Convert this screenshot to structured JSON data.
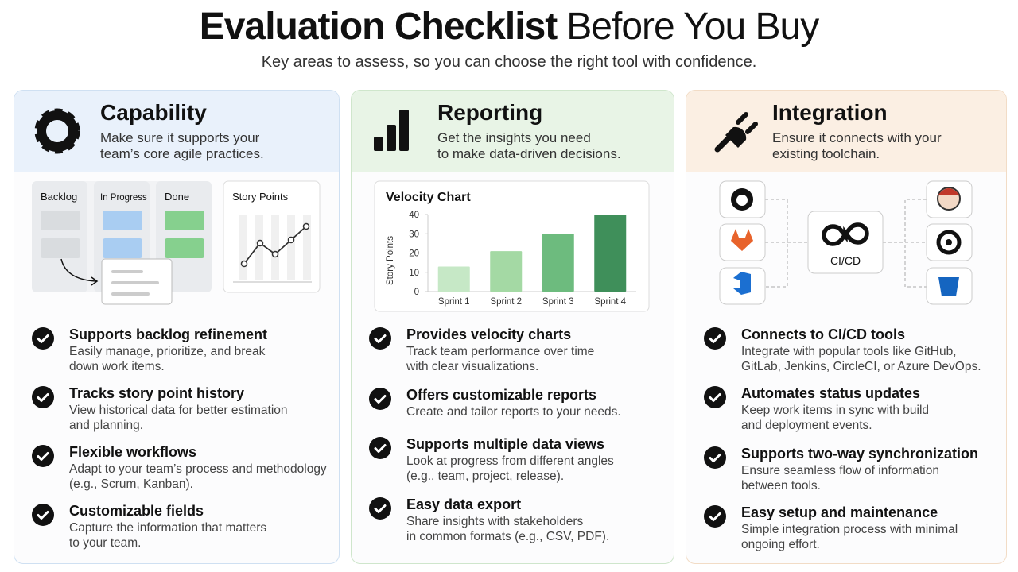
{
  "header": {
    "title_bold": "Evaluation Checklist",
    "title_regular": "Before You Buy",
    "subtitle": "Key areas to assess, so you can choose the right tool with confidence."
  },
  "columns": [
    {
      "heading": "Capability",
      "description": [
        "Make sure it supports your",
        "team’s core agile practices."
      ],
      "illustration": {
        "columns": [
          "Backlog",
          "In Progress",
          "Done"
        ],
        "chart_label": "Story Points"
      },
      "items": [
        {
          "title": "Supports backlog refinement",
          "text": [
            "Easily manage, prioritize, and break",
            "down work items."
          ]
        },
        {
          "title": "Tracks story point history",
          "text": [
            "View historical data for better estimation",
            "and planning."
          ]
        },
        {
          "title": "Flexible workflows",
          "text": [
            "Adapt to your team’s process and methodology",
            "(e.g., Scrum, Kanban)."
          ]
        },
        {
          "title": "Customizable fields",
          "text": [
            "Capture the information that matters",
            "to your team."
          ]
        }
      ]
    },
    {
      "heading": "Reporting",
      "description": [
        "Get the insights you need",
        "to make data-driven decisions."
      ],
      "chart": {
        "type": "bar",
        "title": "Velocity Chart",
        "y_label": "Story Points",
        "categories": [
          "Sprint 1",
          "Sprint 2",
          "Sprint 3",
          "Sprint 4"
        ],
        "values": [
          13,
          21,
          30,
          40
        ],
        "colors": [
          "#c6e8c6",
          "#a4d9a4",
          "#6dbb7e",
          "#3f8f5a"
        ],
        "ylim": [
          0,
          40
        ],
        "yticks": [
          0,
          10,
          20,
          30,
          40
        ]
      },
      "items": [
        {
          "title": "Provides velocity charts",
          "text": [
            "Track team performance over time",
            "with clear visualizations."
          ]
        },
        {
          "title": "Offers customizable reports",
          "text": [
            "Create and tailor reports to your needs."
          ]
        },
        {
          "title": "Supports multiple data views",
          "text": [
            "Look at progress from different angles",
            "(e.g., team, project, release)."
          ]
        },
        {
          "title": "Easy data export",
          "text": [
            "Share insights with stakeholders",
            "in common formats (e.g., CSV, PDF)."
          ]
        }
      ]
    },
    {
      "heading": "Integration",
      "description": [
        "Ensure it connects with your",
        "existing toolchain."
      ],
      "hub_label": "CI/CD",
      "items": [
        {
          "title": "Connects to CI/CD tools",
          "text": [
            "Integrate with popular tools like GitHub,",
            "GitLab, Jenkins, CircleCI, or Azure DevOps."
          ]
        },
        {
          "title": "Automates status updates",
          "text": [
            "Keep work items in sync with build",
            "and deployment events."
          ]
        },
        {
          "title": "Supports two-way synchronization",
          "text": [
            "Ensure seamless flow of information",
            "between tools."
          ]
        },
        {
          "title": "Easy setup and maintenance",
          "text": [
            "Simple integration process with minimal",
            "ongoing effort."
          ]
        }
      ]
    }
  ]
}
